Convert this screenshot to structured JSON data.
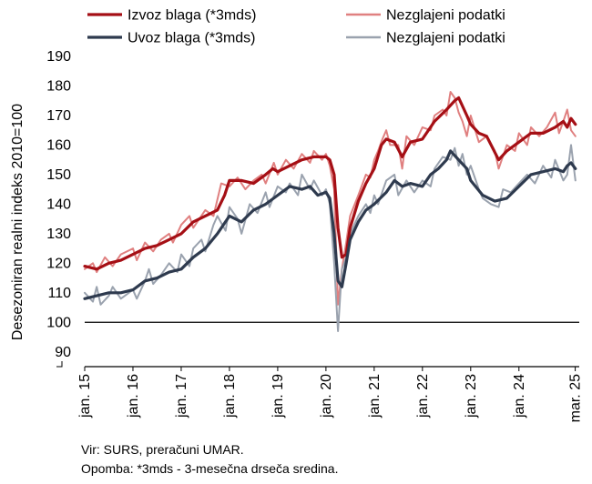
{
  "chart_data": {
    "type": "line",
    "ylabel": "Desezoniran realni indeks 2010=100",
    "ylim": [
      85,
      190
    ],
    "ymin_shown": 90,
    "yticks": [
      90,
      100,
      110,
      120,
      130,
      140,
      150,
      160,
      170,
      180,
      190
    ],
    "reference_line": 100,
    "xlim": [
      2015.0,
      2025.25
    ],
    "xticks": [
      {
        "x": 2015.0,
        "label": "jan. 15"
      },
      {
        "x": 2016.0,
        "label": "jan. 16"
      },
      {
        "x": 2017.0,
        "label": "jan. 17"
      },
      {
        "x": 2018.0,
        "label": "jan. 18"
      },
      {
        "x": 2019.0,
        "label": "jan. 19"
      },
      {
        "x": 2020.0,
        "label": "jan. 20"
      },
      {
        "x": 2021.0,
        "label": "jan. 21"
      },
      {
        "x": 2022.0,
        "label": "jan. 22"
      },
      {
        "x": 2023.0,
        "label": "jan. 23"
      },
      {
        "x": 2024.0,
        "label": "jan. 24"
      },
      {
        "x": 2025.1667,
        "label": "mar. 25"
      }
    ],
    "legend_position": "top",
    "series": [
      {
        "name": "Izvoz blaga (*3mds)",
        "color": "#a50f15",
        "width": 3.2,
        "points": [
          [
            2015.0,
            119
          ],
          [
            2015.25,
            118
          ],
          [
            2015.5,
            120
          ],
          [
            2015.75,
            121
          ],
          [
            2016.0,
            123
          ],
          [
            2016.25,
            125
          ],
          [
            2016.5,
            126
          ],
          [
            2016.75,
            128
          ],
          [
            2017.0,
            130
          ],
          [
            2017.25,
            134
          ],
          [
            2017.5,
            136
          ],
          [
            2017.75,
            138
          ],
          [
            2017.9,
            143
          ],
          [
            2018.0,
            148
          ],
          [
            2018.25,
            148
          ],
          [
            2018.5,
            147
          ],
          [
            2018.75,
            150
          ],
          [
            2018.9,
            152
          ],
          [
            2019.0,
            151
          ],
          [
            2019.25,
            153
          ],
          [
            2019.5,
            155
          ],
          [
            2019.75,
            156
          ],
          [
            2020.0,
            156
          ],
          [
            2020.08,
            155
          ],
          [
            2020.17,
            150
          ],
          [
            2020.25,
            132
          ],
          [
            2020.33,
            122
          ],
          [
            2020.42,
            123
          ],
          [
            2020.5,
            132
          ],
          [
            2020.67,
            141
          ],
          [
            2020.83,
            147
          ],
          [
            2021.0,
            152
          ],
          [
            2021.15,
            160
          ],
          [
            2021.25,
            162
          ],
          [
            2021.42,
            161
          ],
          [
            2021.58,
            156
          ],
          [
            2021.75,
            161
          ],
          [
            2022.0,
            162
          ],
          [
            2022.25,
            168
          ],
          [
            2022.5,
            172
          ],
          [
            2022.67,
            175
          ],
          [
            2022.75,
            176
          ],
          [
            2022.92,
            170
          ],
          [
            2023.0,
            167
          ],
          [
            2023.17,
            164
          ],
          [
            2023.33,
            163
          ],
          [
            2023.58,
            155
          ],
          [
            2023.75,
            158
          ],
          [
            2024.0,
            161
          ],
          [
            2024.25,
            164
          ],
          [
            2024.5,
            164
          ],
          [
            2024.75,
            166
          ],
          [
            2024.92,
            168
          ],
          [
            2025.0,
            166
          ],
          [
            2025.08,
            169
          ],
          [
            2025.17,
            167
          ]
        ]
      },
      {
        "name": "Nezglajeni podatki",
        "color": "#e08080",
        "width": 2.0,
        "points": [
          [
            2015.0,
            118
          ],
          [
            2015.17,
            120
          ],
          [
            2015.25,
            117
          ],
          [
            2015.42,
            122
          ],
          [
            2015.58,
            119
          ],
          [
            2015.75,
            123
          ],
          [
            2016.0,
            125
          ],
          [
            2016.08,
            121
          ],
          [
            2016.25,
            127
          ],
          [
            2016.42,
            124
          ],
          [
            2016.58,
            128
          ],
          [
            2016.75,
            130
          ],
          [
            2016.83,
            127
          ],
          [
            2017.0,
            133
          ],
          [
            2017.17,
            136
          ],
          [
            2017.25,
            132
          ],
          [
            2017.5,
            138
          ],
          [
            2017.67,
            136
          ],
          [
            2017.83,
            147
          ],
          [
            2018.0,
            146
          ],
          [
            2018.17,
            149
          ],
          [
            2018.33,
            145
          ],
          [
            2018.5,
            148
          ],
          [
            2018.67,
            150
          ],
          [
            2018.75,
            147
          ],
          [
            2018.92,
            154
          ],
          [
            2019.0,
            150
          ],
          [
            2019.17,
            155
          ],
          [
            2019.33,
            152
          ],
          [
            2019.5,
            157
          ],
          [
            2019.67,
            154
          ],
          [
            2019.75,
            158
          ],
          [
            2019.92,
            155
          ],
          [
            2020.0,
            157
          ],
          [
            2020.08,
            153
          ],
          [
            2020.17,
            145
          ],
          [
            2020.25,
            106
          ],
          [
            2020.33,
            118
          ],
          [
            2020.42,
            127
          ],
          [
            2020.5,
            136
          ],
          [
            2020.67,
            143
          ],
          [
            2020.83,
            150
          ],
          [
            2020.92,
            149
          ],
          [
            2021.0,
            155
          ],
          [
            2021.08,
            158
          ],
          [
            2021.17,
            162
          ],
          [
            2021.25,
            165
          ],
          [
            2021.33,
            160
          ],
          [
            2021.5,
            160
          ],
          [
            2021.58,
            152
          ],
          [
            2021.67,
            163
          ],
          [
            2021.83,
            160
          ],
          [
            2022.0,
            166
          ],
          [
            2022.17,
            165
          ],
          [
            2022.25,
            170
          ],
          [
            2022.42,
            172
          ],
          [
            2022.5,
            170
          ],
          [
            2022.58,
            178
          ],
          [
            2022.67,
            176
          ],
          [
            2022.75,
            171
          ],
          [
            2022.83,
            168
          ],
          [
            2022.92,
            163
          ],
          [
            2023.0,
            170
          ],
          [
            2023.17,
            161
          ],
          [
            2023.33,
            163
          ],
          [
            2023.5,
            158
          ],
          [
            2023.58,
            152
          ],
          [
            2023.75,
            160
          ],
          [
            2023.92,
            158
          ],
          [
            2024.0,
            164
          ],
          [
            2024.17,
            160
          ],
          [
            2024.25,
            166
          ],
          [
            2024.42,
            163
          ],
          [
            2024.58,
            166
          ],
          [
            2024.75,
            171
          ],
          [
            2024.83,
            164
          ],
          [
            2024.92,
            168
          ],
          [
            2025.0,
            172
          ],
          [
            2025.08,
            165
          ],
          [
            2025.17,
            163
          ]
        ]
      },
      {
        "name": "Uvoz blaga (*3mds)",
        "color": "#2e3a4e",
        "width": 3.2,
        "points": [
          [
            2015.0,
            108
          ],
          [
            2015.25,
            109
          ],
          [
            2015.5,
            110
          ],
          [
            2015.75,
            110
          ],
          [
            2016.0,
            111
          ],
          [
            2016.25,
            114
          ],
          [
            2016.5,
            115
          ],
          [
            2016.75,
            117
          ],
          [
            2017.0,
            118
          ],
          [
            2017.25,
            122
          ],
          [
            2017.5,
            125
          ],
          [
            2017.75,
            130
          ],
          [
            2018.0,
            136
          ],
          [
            2018.25,
            134
          ],
          [
            2018.5,
            138
          ],
          [
            2018.75,
            140
          ],
          [
            2019.0,
            143
          ],
          [
            2019.25,
            146
          ],
          [
            2019.5,
            145
          ],
          [
            2019.67,
            146
          ],
          [
            2019.83,
            143
          ],
          [
            2020.0,
            144
          ],
          [
            2020.08,
            142
          ],
          [
            2020.17,
            130
          ],
          [
            2020.25,
            114
          ],
          [
            2020.33,
            112
          ],
          [
            2020.42,
            120
          ],
          [
            2020.5,
            128
          ],
          [
            2020.67,
            134
          ],
          [
            2020.83,
            138
          ],
          [
            2021.0,
            140
          ],
          [
            2021.25,
            144
          ],
          [
            2021.42,
            148
          ],
          [
            2021.58,
            146
          ],
          [
            2021.75,
            147
          ],
          [
            2022.0,
            146
          ],
          [
            2022.17,
            150
          ],
          [
            2022.33,
            152
          ],
          [
            2022.5,
            155
          ],
          [
            2022.58,
            158
          ],
          [
            2022.75,
            155
          ],
          [
            2022.92,
            152
          ],
          [
            2023.0,
            148
          ],
          [
            2023.25,
            143
          ],
          [
            2023.5,
            141
          ],
          [
            2023.75,
            142
          ],
          [
            2024.0,
            146
          ],
          [
            2024.25,
            150
          ],
          [
            2024.5,
            151
          ],
          [
            2024.75,
            152
          ],
          [
            2024.92,
            151
          ],
          [
            2025.0,
            153
          ],
          [
            2025.08,
            154
          ],
          [
            2025.17,
            152
          ]
        ]
      },
      {
        "name": "Nezglajeni podatki",
        "color": "#9aa2ae",
        "width": 2.0,
        "points": [
          [
            2015.0,
            110
          ],
          [
            2015.17,
            107
          ],
          [
            2015.25,
            112
          ],
          [
            2015.33,
            106
          ],
          [
            2015.5,
            109
          ],
          [
            2015.58,
            112
          ],
          [
            2015.75,
            108
          ],
          [
            2016.0,
            111
          ],
          [
            2016.08,
            108
          ],
          [
            2016.25,
            114
          ],
          [
            2016.33,
            118
          ],
          [
            2016.42,
            113
          ],
          [
            2016.58,
            116
          ],
          [
            2016.75,
            120
          ],
          [
            2016.92,
            117
          ],
          [
            2017.0,
            123
          ],
          [
            2017.17,
            119
          ],
          [
            2017.25,
            125
          ],
          [
            2017.42,
            128
          ],
          [
            2017.5,
            124
          ],
          [
            2017.67,
            133
          ],
          [
            2017.75,
            136
          ],
          [
            2017.92,
            131
          ],
          [
            2018.0,
            139
          ],
          [
            2018.17,
            135
          ],
          [
            2018.25,
            130
          ],
          [
            2018.42,
            140
          ],
          [
            2018.58,
            137
          ],
          [
            2018.75,
            144
          ],
          [
            2018.83,
            139
          ],
          [
            2019.0,
            146
          ],
          [
            2019.17,
            144
          ],
          [
            2019.25,
            147
          ],
          [
            2019.42,
            143
          ],
          [
            2019.5,
            150
          ],
          [
            2019.67,
            145
          ],
          [
            2019.75,
            148
          ],
          [
            2019.92,
            143
          ],
          [
            2020.0,
            145
          ],
          [
            2020.08,
            140
          ],
          [
            2020.17,
            120
          ],
          [
            2020.25,
            97
          ],
          [
            2020.33,
            118
          ],
          [
            2020.42,
            122
          ],
          [
            2020.5,
            130
          ],
          [
            2020.67,
            136
          ],
          [
            2020.83,
            140
          ],
          [
            2020.92,
            137
          ],
          [
            2021.0,
            143
          ],
          [
            2021.08,
            140
          ],
          [
            2021.25,
            148
          ],
          [
            2021.42,
            150
          ],
          [
            2021.5,
            143
          ],
          [
            2021.67,
            148
          ],
          [
            2021.83,
            144
          ],
          [
            2022.0,
            148
          ],
          [
            2022.17,
            146
          ],
          [
            2022.25,
            152
          ],
          [
            2022.42,
            156
          ],
          [
            2022.58,
            155
          ],
          [
            2022.67,
            159
          ],
          [
            2022.75,
            153
          ],
          [
            2022.83,
            157
          ],
          [
            2022.92,
            150
          ],
          [
            2023.0,
            153
          ],
          [
            2023.17,
            145
          ],
          [
            2023.25,
            142
          ],
          [
            2023.42,
            140
          ],
          [
            2023.58,
            139
          ],
          [
            2023.67,
            145
          ],
          [
            2023.83,
            144
          ],
          [
            2024.0,
            147
          ],
          [
            2024.17,
            150
          ],
          [
            2024.33,
            147
          ],
          [
            2024.5,
            153
          ],
          [
            2024.67,
            149
          ],
          [
            2024.75,
            155
          ],
          [
            2024.92,
            148
          ],
          [
            2025.0,
            150
          ],
          [
            2025.08,
            160
          ],
          [
            2025.17,
            148
          ]
        ]
      }
    ]
  },
  "notes": [
    "Vir: SURS, preračuni UMAR.",
    "Opomba: *3mds - 3-mesečna drseča sredina."
  ]
}
